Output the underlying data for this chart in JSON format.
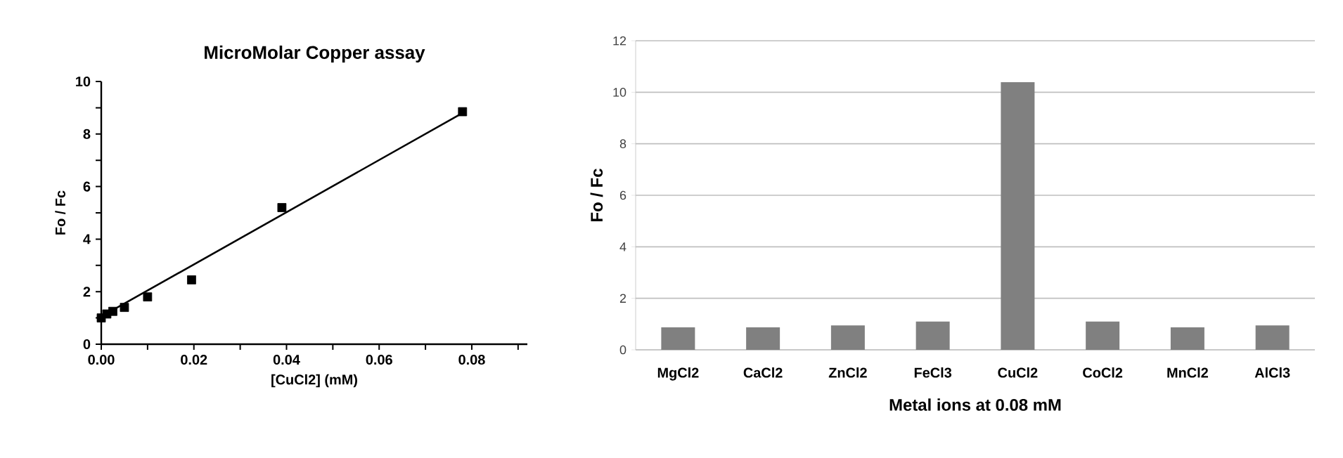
{
  "chart_data": [
    {
      "type": "scatter",
      "title": "MicroMolar Copper assay",
      "xlabel": "[CuCl2] (mM)",
      "ylabel": "Fo / Fc",
      "xlim": [
        0,
        0.092
      ],
      "ylim": [
        0,
        10
      ],
      "xticks": [
        {
          "value": 0,
          "label": "0.00"
        },
        {
          "value": 0.01,
          "label": null
        },
        0.02,
        {
          "value": 0.03,
          "label": null
        },
        0.04,
        {
          "value": 0.05,
          "label": null
        },
        0.06,
        {
          "value": 0.07,
          "label": null
        },
        0.08,
        {
          "value": 0.09,
          "label": null
        }
      ],
      "yticks": [
        0,
        {
          "value": 1,
          "label": null
        },
        2,
        {
          "value": 3,
          "label": null
        },
        4,
        {
          "value": 5,
          "label": null
        },
        6,
        {
          "value": 7,
          "label": null
        },
        8,
        {
          "value": 9,
          "label": null
        },
        10
      ],
      "series": [
        {
          "type": "scatter",
          "marker": "square",
          "color": "#000000",
          "x": [
            0,
            0.0012,
            0.0025,
            0.005,
            0.01,
            0.0195,
            0.039,
            0.078
          ],
          "values": [
            1.0,
            1.15,
            1.25,
            1.4,
            1.8,
            2.45,
            5.2,
            8.85
          ]
        },
        {
          "type": "line",
          "color": "#000000",
          "x": [
            0,
            0.078
          ],
          "values": [
            1.05,
            8.8
          ]
        }
      ]
    },
    {
      "type": "bar",
      "xlabel": "Metal ions at 0.08 mM",
      "ylabel": "Fo / Fc",
      "grid": "y",
      "color": "#808080",
      "ylim": [
        0,
        12
      ],
      "yticks": [
        0,
        2,
        4,
        6,
        8,
        10,
        12
      ],
      "categories": [
        "MgCl2",
        "CaCl2",
        "ZnCl2",
        "FeCl3",
        "CuCl2",
        "CoCl2",
        "MnCl2",
        "AlCl3"
      ],
      "values": [
        0.87,
        0.87,
        0.95,
        1.1,
        10.39,
        1.1,
        0.87,
        0.95
      ]
    }
  ]
}
